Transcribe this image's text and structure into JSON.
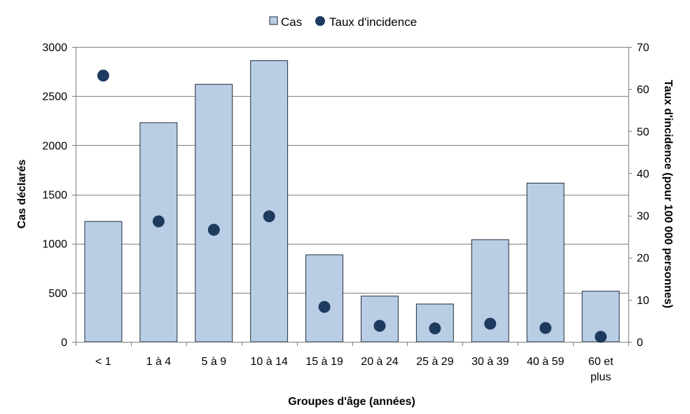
{
  "chart_data": {
    "type": "bar",
    "categories": [
      "< 1",
      "1 à 4",
      "5 à 9",
      "10 à 14",
      "15 à 19",
      "20 à 24",
      "25 à 29",
      "30 à 39",
      "40 à 59",
      "60 et plus"
    ],
    "category_lines": [
      [
        "< 1"
      ],
      [
        "1 à 4"
      ],
      [
        "5 à 9"
      ],
      [
        "10 à 14"
      ],
      [
        "15 à 19"
      ],
      [
        "20 à 24"
      ],
      [
        "25 à 29"
      ],
      [
        "30 à 39"
      ],
      [
        "40 à 59"
      ],
      [
        "60 et",
        "plus"
      ]
    ],
    "series": [
      {
        "name": "Cas",
        "kind": "bar",
        "axis": "left",
        "color": "#b9cde5",
        "stroke": "#1f2d3d",
        "values": [
          1225,
          2230,
          2620,
          2860,
          885,
          465,
          385,
          1040,
          1615,
          515
        ]
      },
      {
        "name": "Taux d'incidence",
        "kind": "scatter",
        "axis": "right",
        "color": "#1f3a5f",
        "values": [
          63.2,
          28.6,
          26.6,
          29.8,
          8.3,
          3.8,
          3.2,
          4.3,
          3.3,
          1.2
        ]
      }
    ],
    "title": "",
    "xlabel": "Groupes d'âge (années)",
    "ylabel": "Cas déclarés",
    "y2label": "Taux d'incidence (pour 100 000 personnes)",
    "ylim": [
      0,
      3000
    ],
    "yticks": [
      0,
      500,
      1000,
      1500,
      2000,
      2500,
      3000
    ],
    "y2lim": [
      0,
      70
    ],
    "y2ticks": [
      0,
      10,
      20,
      30,
      40,
      50,
      60,
      70
    ],
    "grid": true,
    "legend": "top-center",
    "gridColor": "#7f7f7f",
    "axisColor": "#7f7f7f"
  }
}
